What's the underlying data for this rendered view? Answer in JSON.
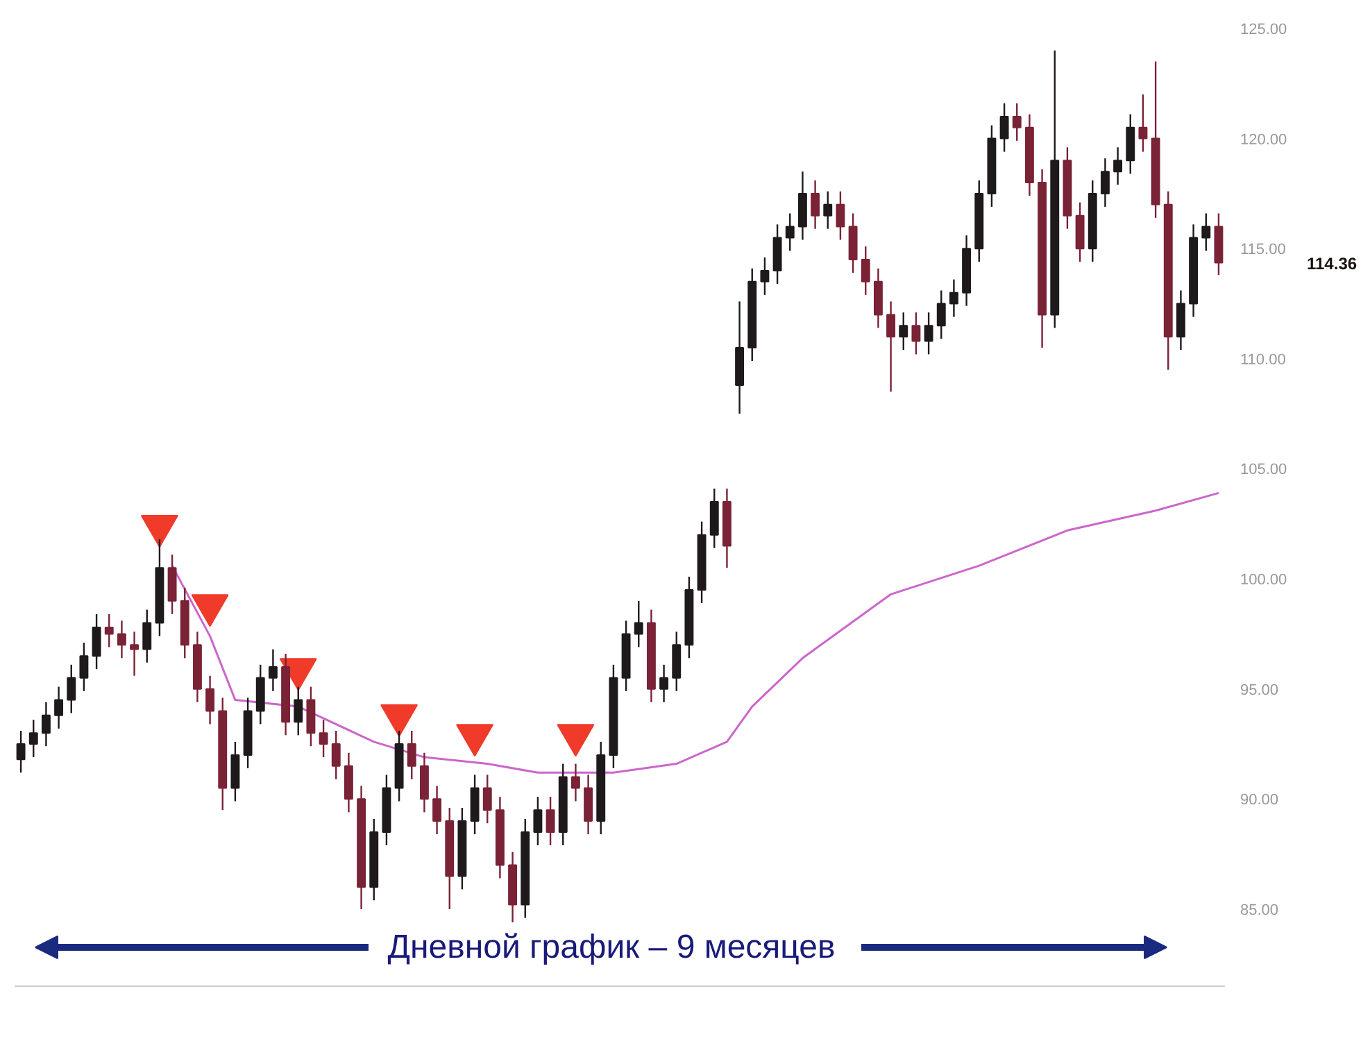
{
  "chart_data": {
    "type": "candlestick",
    "categories": [
      null,
      null,
      null,
      null,
      null,
      null,
      null,
      null,
      null,
      null,
      null,
      null,
      null,
      null,
      null,
      null,
      null,
      null,
      null,
      null,
      null,
      null,
      null,
      null,
      null,
      null,
      null,
      null,
      null,
      null,
      null,
      null,
      null,
      null,
      null,
      null,
      null,
      null,
      null,
      null,
      null,
      null,
      null,
      null,
      null,
      null,
      null,
      null,
      null,
      null,
      null,
      null,
      null,
      null,
      null,
      null,
      null,
      null,
      null,
      null,
      null,
      null,
      null,
      null,
      null,
      null,
      null,
      null,
      null,
      null,
      null,
      null,
      null,
      null,
      null,
      null,
      null,
      null,
      null,
      null,
      null,
      null,
      null,
      null,
      null,
      null,
      null,
      null,
      null,
      null,
      null,
      null,
      null,
      null,
      null,
      null
    ],
    "ohlc": [
      [
        91.8,
        93.1,
        91.2,
        92.5
      ],
      [
        92.5,
        93.6,
        91.9,
        93.0
      ],
      [
        93.0,
        94.4,
        92.4,
        93.8
      ],
      [
        93.8,
        95.1,
        93.2,
        94.5
      ],
      [
        94.5,
        96.1,
        93.9,
        95.5
      ],
      [
        95.5,
        97.1,
        94.9,
        96.5
      ],
      [
        96.5,
        98.4,
        95.9,
        97.8
      ],
      [
        97.8,
        98.4,
        96.9,
        97.5
      ],
      [
        97.5,
        98.1,
        96.4,
        97.0
      ],
      [
        97.0,
        97.6,
        95.6,
        96.8
      ],
      [
        96.8,
        98.6,
        96.2,
        98.0
      ],
      [
        98.0,
        101.8,
        97.4,
        100.5
      ],
      [
        100.5,
        101.1,
        98.4,
        99.0
      ],
      [
        99.0,
        99.6,
        96.4,
        97.0
      ],
      [
        97.0,
        97.6,
        94.4,
        95.0
      ],
      [
        95.0,
        95.6,
        93.4,
        94.0
      ],
      [
        94.0,
        94.6,
        89.5,
        90.5
      ],
      [
        90.5,
        92.6,
        89.9,
        92.0
      ],
      [
        92.0,
        94.6,
        91.4,
        94.0
      ],
      [
        94.0,
        96.1,
        93.4,
        95.5
      ],
      [
        95.5,
        96.8,
        94.9,
        96.0
      ],
      [
        96.0,
        96.6,
        92.9,
        93.5
      ],
      [
        93.5,
        95.1,
        92.9,
        94.5
      ],
      [
        94.5,
        95.1,
        92.4,
        93.0
      ],
      [
        93.0,
        93.6,
        91.9,
        92.5
      ],
      [
        92.5,
        93.1,
        90.9,
        91.5
      ],
      [
        91.5,
        92.1,
        89.4,
        90.0
      ],
      [
        90.0,
        90.6,
        85.0,
        86.0
      ],
      [
        86.0,
        89.1,
        85.4,
        88.5
      ],
      [
        88.5,
        91.1,
        87.9,
        90.5
      ],
      [
        90.5,
        93.1,
        89.9,
        92.5
      ],
      [
        92.5,
        93.1,
        90.9,
        91.5
      ],
      [
        91.5,
        92.1,
        89.4,
        90.0
      ],
      [
        90.0,
        90.6,
        88.4,
        89.0
      ],
      [
        89.0,
        89.6,
        85.0,
        86.5
      ],
      [
        86.5,
        89.6,
        85.9,
        89.0
      ],
      [
        89.0,
        91.1,
        88.4,
        90.5
      ],
      [
        90.5,
        91.1,
        88.9,
        89.5
      ],
      [
        89.5,
        90.1,
        86.4,
        87.0
      ],
      [
        87.0,
        87.6,
        84.4,
        85.2
      ],
      [
        85.2,
        89.1,
        84.6,
        88.5
      ],
      [
        88.5,
        90.1,
        87.9,
        89.5
      ],
      [
        89.5,
        90.1,
        87.9,
        88.5
      ],
      [
        88.5,
        91.6,
        87.9,
        91.0
      ],
      [
        91.0,
        91.6,
        89.9,
        90.5
      ],
      [
        90.5,
        91.1,
        88.4,
        89.0
      ],
      [
        89.0,
        92.6,
        88.4,
        92.0
      ],
      [
        92.0,
        96.1,
        91.4,
        95.5
      ],
      [
        95.5,
        98.1,
        94.9,
        97.5
      ],
      [
        97.5,
        99.0,
        96.9,
        98.0
      ],
      [
        98.0,
        98.6,
        94.4,
        95.0
      ],
      [
        95.0,
        96.1,
        94.4,
        95.5
      ],
      [
        95.5,
        97.6,
        94.9,
        97.0
      ],
      [
        97.0,
        100.1,
        96.4,
        99.5
      ],
      [
        99.5,
        102.6,
        98.9,
        102.0
      ],
      [
        102.0,
        104.1,
        101.4,
        103.5
      ],
      [
        103.5,
        104.1,
        100.5,
        101.5
      ],
      [
        108.8,
        112.6,
        107.5,
        110.5
      ],
      [
        110.5,
        114.1,
        109.9,
        113.5
      ],
      [
        113.5,
        114.6,
        112.9,
        114.0
      ],
      [
        114.0,
        116.1,
        113.4,
        115.5
      ],
      [
        115.5,
        116.6,
        114.9,
        116.0
      ],
      [
        116.0,
        118.5,
        115.4,
        117.5
      ],
      [
        117.5,
        118.1,
        115.9,
        116.5
      ],
      [
        116.5,
        117.6,
        115.9,
        117.0
      ],
      [
        117.0,
        117.6,
        115.4,
        116.0
      ],
      [
        116.0,
        116.6,
        113.9,
        114.5
      ],
      [
        114.5,
        115.1,
        112.9,
        113.5
      ],
      [
        113.5,
        114.1,
        111.4,
        112.0
      ],
      [
        112.0,
        112.6,
        108.5,
        111.0
      ],
      [
        111.0,
        112.1,
        110.4,
        111.5
      ],
      [
        111.5,
        112.1,
        110.2,
        110.8
      ],
      [
        110.8,
        112.1,
        110.2,
        111.5
      ],
      [
        111.5,
        113.1,
        110.9,
        112.5
      ],
      [
        112.5,
        113.6,
        111.9,
        113.0
      ],
      [
        113.0,
        115.6,
        112.4,
        115.0
      ],
      [
        115.0,
        118.1,
        114.4,
        117.5
      ],
      [
        117.5,
        120.6,
        116.9,
        120.0
      ],
      [
        120.0,
        121.6,
        119.4,
        121.0
      ],
      [
        121.0,
        121.6,
        119.9,
        120.5
      ],
      [
        120.5,
        121.1,
        117.4,
        118.0
      ],
      [
        118.0,
        118.6,
        110.5,
        112.0
      ],
      [
        112.0,
        124.0,
        111.4,
        119.0
      ],
      [
        119.0,
        119.6,
        115.9,
        116.5
      ],
      [
        116.5,
        117.1,
        114.4,
        115.0
      ],
      [
        115.0,
        118.1,
        114.4,
        117.5
      ],
      [
        117.5,
        119.1,
        116.9,
        118.5
      ],
      [
        118.5,
        119.6,
        117.9,
        119.0
      ],
      [
        119.0,
        121.1,
        118.4,
        120.5
      ],
      [
        120.5,
        122.0,
        119.4,
        120.0
      ],
      [
        120.0,
        123.5,
        116.4,
        117.0
      ],
      [
        117.0,
        117.6,
        109.5,
        111.0
      ],
      [
        111.0,
        113.1,
        110.4,
        112.5
      ],
      [
        112.5,
        116.1,
        111.9,
        115.5
      ],
      [
        115.5,
        116.6,
        114.9,
        116.0
      ],
      [
        116.0,
        116.6,
        113.8,
        114.36
      ]
    ],
    "colors": [
      "#1e1a1c",
      "#1e1a1c",
      "#1e1a1c",
      "#1e1a1c",
      "#1e1a1c",
      "#1e1a1c",
      "#1e1a1c",
      "#7a2236",
      "#7a2236",
      "#7a2236",
      "#1e1a1c",
      "#1e1a1c",
      "#7a2236",
      "#7a2236",
      "#7a2236",
      "#7a2236",
      "#7a2236",
      "#1e1a1c",
      "#1e1a1c",
      "#1e1a1c",
      "#1e1a1c",
      "#7a2236",
      "#1e1a1c",
      "#7a2236",
      "#7a2236",
      "#7a2236",
      "#7a2236",
      "#7a2236",
      "#1e1a1c",
      "#1e1a1c",
      "#1e1a1c",
      "#7a2236",
      "#7a2236",
      "#7a2236",
      "#7a2236",
      "#1e1a1c",
      "#1e1a1c",
      "#7a2236",
      "#7a2236",
      "#7a2236",
      "#1e1a1c",
      "#1e1a1c",
      "#7a2236",
      "#1e1a1c",
      "#7a2236",
      "#7a2236",
      "#1e1a1c",
      "#1e1a1c",
      "#1e1a1c",
      "#1e1a1c",
      "#7a2236",
      "#1e1a1c",
      "#1e1a1c",
      "#1e1a1c",
      "#1e1a1c",
      "#1e1a1c",
      "#7a2236",
      "#1e1a1c",
      "#1e1a1c",
      "#1e1a1c",
      "#1e1a1c",
      "#1e1a1c",
      "#1e1a1c",
      "#7a2236",
      "#1e1a1c",
      "#7a2236",
      "#7a2236",
      "#7a2236",
      "#7a2236",
      "#7a2236",
      "#1e1a1c",
      "#7a2236",
      "#1e1a1c",
      "#1e1a1c",
      "#1e1a1c",
      "#1e1a1c",
      "#1e1a1c",
      "#1e1a1c",
      "#1e1a1c",
      "#7a2236",
      "#7a2236",
      "#7a2236",
      "#1e1a1c",
      "#7a2236",
      "#7a2236",
      "#1e1a1c",
      "#1e1a1c",
      "#1e1a1c",
      "#1e1a1c",
      "#7a2236",
      "#7a2236",
      "#7a2236",
      "#1e1a1c",
      "#1e1a1c",
      "#1e1a1c",
      "#7a2236"
    ],
    "series": [
      {
        "type": "line",
        "color": "#cc66cc",
        "values": [
          null,
          null,
          null,
          null,
          null,
          null,
          null,
          null,
          null,
          null,
          null,
          null,
          100.6,
          null,
          null,
          97.4,
          null,
          94.5,
          null,
          null,
          null,
          null,
          94.2,
          null,
          null,
          null,
          null,
          null,
          92.6,
          null,
          null,
          null,
          91.9,
          null,
          null,
          null,
          null,
          91.6,
          null,
          null,
          null,
          91.2,
          null,
          null,
          null,
          null,
          null,
          91.2,
          null,
          null,
          null,
          null,
          91.6,
          null,
          null,
          null,
          92.6,
          null,
          94.2,
          null,
          null,
          null,
          96.4,
          null,
          null,
          null,
          null,
          null,
          null,
          99.3,
          null,
          null,
          null,
          null,
          null,
          null,
          100.6,
          null,
          null,
          null,
          null,
          null,
          null,
          102.2,
          null,
          null,
          null,
          null,
          null,
          null,
          103.1,
          null,
          null,
          null,
          null,
          103.9
        ]
      },
      {
        "type": "scatter",
        "marker": "triangle",
        "color": "#f03a2a",
        "values": [
          null,
          null,
          null,
          null,
          null,
          null,
          null,
          null,
          null,
          null,
          null,
          102.4,
          null,
          null,
          null,
          98.8,
          null,
          null,
          null,
          null,
          null,
          null,
          95.9,
          null,
          null,
          null,
          null,
          null,
          null,
          null,
          93.8,
          null,
          null,
          null,
          null,
          null,
          92.9,
          null,
          null,
          null,
          null,
          null,
          null,
          null,
          92.9,
          null,
          null,
          null,
          null,
          null,
          null,
          null,
          null,
          null,
          null,
          null,
          null,
          null,
          null,
          null,
          null,
          null,
          null,
          null,
          null,
          null,
          null,
          null,
          null,
          null,
          null,
          null,
          null,
          null,
          null,
          null,
          null,
          null,
          null,
          null,
          null,
          null,
          null,
          null,
          null,
          null,
          null,
          null,
          null,
          null,
          null,
          null,
          null,
          null,
          null,
          null
        ]
      }
    ],
    "ylim": [
      81.5,
      125
    ],
    "yticks": [
      {
        "value": 85,
        "label": "85.00"
      },
      {
        "value": 90,
        "label": "90.00"
      },
      {
        "value": 95,
        "label": "95.00"
      },
      {
        "value": 100,
        "label": "100.00"
      },
      {
        "value": 105,
        "label": "105.00"
      },
      {
        "value": 110,
        "label": "110.00"
      },
      {
        "value": 115,
        "label": "115.00"
      },
      {
        "value": 120,
        "label": "120.00"
      },
      {
        "value": 125,
        "label": "125.00"
      }
    ],
    "tick_labels": "y",
    "grid": false,
    "annotations": [
      "114.36",
      "Дневной график – 9 месяцев"
    ]
  }
}
